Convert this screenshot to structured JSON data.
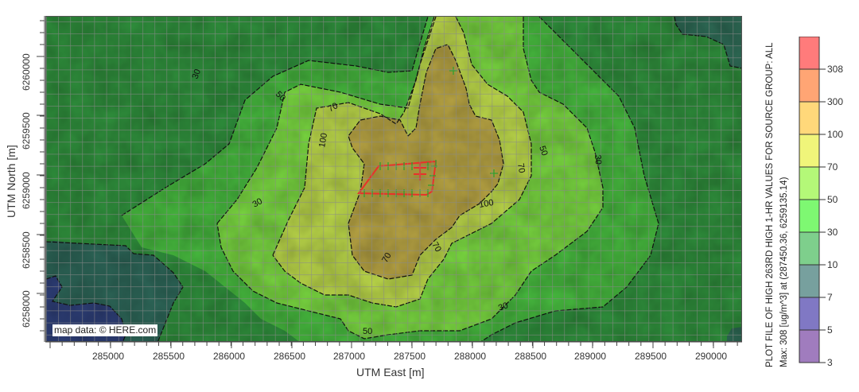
{
  "chart_data": {
    "type": "heatmap",
    "subtype": "contour_map_overlay",
    "title": "PLOT FILE OF HIGH 263RD HIGH 1-HR VALUES FOR SOURCE GROUP: ALL",
    "subtitle": "Max: 308 [ug/m^3] at (287450.36, 6259135.14)",
    "xlabel": "UTM East [m]",
    "ylabel": "UTM North [m]",
    "xlim": [
      284530,
      290240
    ],
    "ylim": [
      6257600,
      6260340
    ],
    "x_ticks": [
      285000,
      285500,
      286000,
      286500,
      287000,
      287500,
      288000,
      288500,
      289000,
      289500,
      290000
    ],
    "y_ticks": [
      6258000,
      6258500,
      6259000,
      6259500,
      6260000
    ],
    "grid": true,
    "units": "ug/m^3",
    "max_value": 308,
    "max_location": [
      287450.36,
      6259135.14
    ],
    "contour_levels": [
      3,
      5,
      7,
      10,
      30,
      50,
      70,
      100,
      300,
      308
    ],
    "contour_labels_visible": [
      "30",
      "50",
      "70",
      "100"
    ],
    "legend": {
      "position": "right",
      "levels": [
        {
          "from": 308,
          "to": null,
          "color": "#ff7b7b"
        },
        {
          "from": 300,
          "to": 308,
          "color": "#ffa574"
        },
        {
          "from": 100,
          "to": 300,
          "color": "#ffd87a"
        },
        {
          "from": 70,
          "to": 100,
          "color": "#f0f57a"
        },
        {
          "from": 50,
          "to": 70,
          "color": "#b4f878"
        },
        {
          "from": 30,
          "to": 50,
          "color": "#7ef872"
        },
        {
          "from": 10,
          "to": 30,
          "color": "#7ecf8c"
        },
        {
          "from": 7,
          "to": 10,
          "color": "#77a09e"
        },
        {
          "from": 5,
          "to": 7,
          "color": "#8078c4"
        },
        {
          "from": 3,
          "to": 5,
          "color": "#a07cbe"
        }
      ],
      "tick_labels": [
        "308",
        "300",
        "100",
        "70",
        "50",
        "30",
        "10",
        "7",
        "5",
        "3"
      ]
    },
    "source_area": {
      "description": "Red polygon area source with green vertex markers near plot center",
      "approx_x_range": [
        287100,
        287650
      ],
      "approx_y_range": [
        6258900,
        6259250
      ]
    },
    "basemap_attribution": "map data: © HERE.com"
  },
  "labels": {
    "xlabel": "UTM East [m]",
    "ylabel": "UTM North [m]",
    "attribution": "map data: © HERE.com",
    "legend_title": "PLOT FILE OF HIGH 263RD HIGH 1-HR VALUES FOR SOURCE GROUP: ALL",
    "legend_subtitle": "Max: 308 [ug/m^3] at (287450.36, 6259135.14)",
    "contour_30": "30",
    "contour_50": "50",
    "contour_70": "70",
    "contour_100": "100"
  },
  "x_tick_labels": [
    "285000",
    "285500",
    "286000",
    "286500",
    "287000",
    "287500",
    "288000",
    "288500",
    "289000",
    "289500",
    "290000"
  ],
  "y_tick_labels": [
    "6258000",
    "6258500",
    "6259000",
    "6259500",
    "6260000"
  ],
  "legend_tick_labels": [
    "308",
    "300",
    "100",
    "70",
    "50",
    "30",
    "10",
    "7",
    "5",
    "3"
  ]
}
